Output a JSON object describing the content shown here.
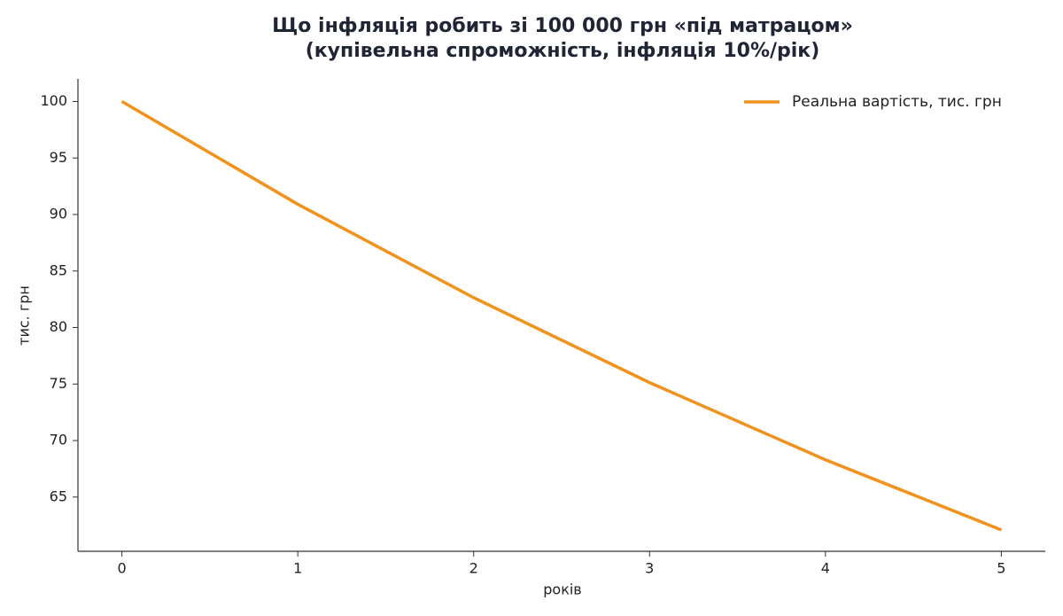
{
  "chart_data": {
    "type": "line",
    "title": "Що інфляція робить зі 100 000 грн «під матрацом»",
    "subtitle": "(купівельна спроможність, інфляція 10%/рік)",
    "x_label": "років",
    "y_label": "тис. грн",
    "x": [
      0,
      1,
      2,
      3,
      4,
      5
    ],
    "series": [
      {
        "name": "Реальна вартість, тис. грн",
        "color": "#f0921c",
        "values": [
          100,
          90.91,
          82.64,
          75.13,
          68.3,
          62.09
        ]
      }
    ],
    "xlim": [
      -0.25,
      5.25
    ],
    "xticks": [
      0,
      1,
      2,
      3,
      4,
      5
    ],
    "ylim": [
      60.2,
      102
    ],
    "yticks": [
      65,
      70,
      75,
      80,
      85,
      90,
      95,
      100
    ],
    "legend": "upper right",
    "grid": false
  }
}
